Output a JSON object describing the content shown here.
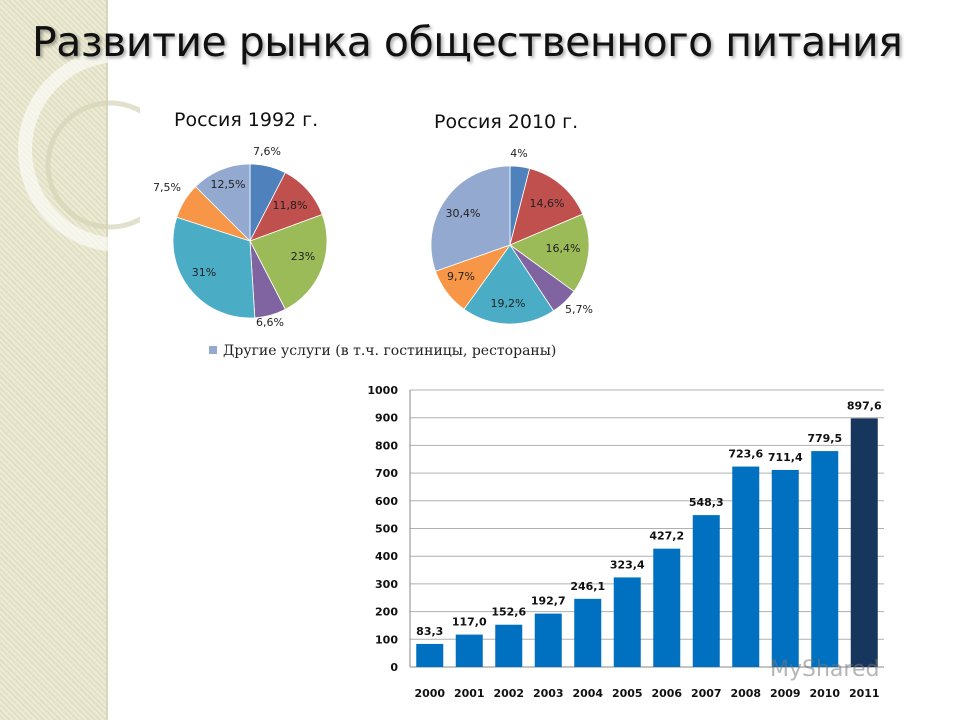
{
  "slide": {
    "title": "Развитие рынка общественного питания",
    "watermark": "MyShared"
  },
  "legend": {
    "label": "Другие услуги (в т.ч. гостиницы, рестораны)"
  },
  "chart_data": [
    {
      "type": "pie",
      "title": "Россия 1992 г.",
      "slices": [
        {
          "label": "7,6%",
          "value": 7.6,
          "color": "#4f81bd"
        },
        {
          "label": "11,8%",
          "value": 11.8,
          "color": "#c0504d"
        },
        {
          "label": "23%",
          "value": 23,
          "color": "#9bbb59"
        },
        {
          "label": "6,6%",
          "value": 6.6,
          "color": "#8064a2"
        },
        {
          "label": "31%",
          "value": 31,
          "color": "#4bacc6"
        },
        {
          "label": "7,5%",
          "value": 7.5,
          "color": "#f79646"
        },
        {
          "label": "12,5%",
          "value": 12.5,
          "color": "#93a9cf"
        }
      ]
    },
    {
      "type": "pie",
      "title": "Россия 2010 г.",
      "slices": [
        {
          "label": "4%",
          "value": 4,
          "color": "#4f81bd"
        },
        {
          "label": "14,6%",
          "value": 14.6,
          "color": "#c0504d"
        },
        {
          "label": "16,4%",
          "value": 16.4,
          "color": "#9bbb59"
        },
        {
          "label": "5,7%",
          "value": 5.7,
          "color": "#8064a2"
        },
        {
          "label": "19,2%",
          "value": 19.2,
          "color": "#4bacc6"
        },
        {
          "label": "9,7%",
          "value": 9.7,
          "color": "#f79646"
        },
        {
          "label": "30,4%",
          "value": 30.4,
          "color": "#93a9cf"
        }
      ]
    },
    {
      "type": "bar",
      "categories": [
        "2000",
        "2001",
        "2002",
        "2003",
        "2004",
        "2005",
        "2006",
        "2007",
        "2008",
        "2009",
        "2010",
        "2011"
      ],
      "values": [
        83.3,
        117.0,
        152.6,
        192.7,
        246.1,
        323.4,
        427.2,
        548.3,
        723.6,
        711.4,
        779.5,
        897.6
      ],
      "value_labels": [
        "83,3",
        "117,0",
        "152,6",
        "192,7",
        "246,1",
        "323,4",
        "427,2",
        "548,3",
        "723,6",
        "711,4",
        "779,5",
        "897,6"
      ],
      "yticks": [
        "0",
        "100",
        "200",
        "300",
        "400",
        "500",
        "600",
        "700",
        "800",
        "900",
        "1000"
      ],
      "ylim": [
        0,
        1000
      ],
      "grid": true,
      "color": "#0070c0",
      "highlight_color": "#17365d"
    }
  ]
}
